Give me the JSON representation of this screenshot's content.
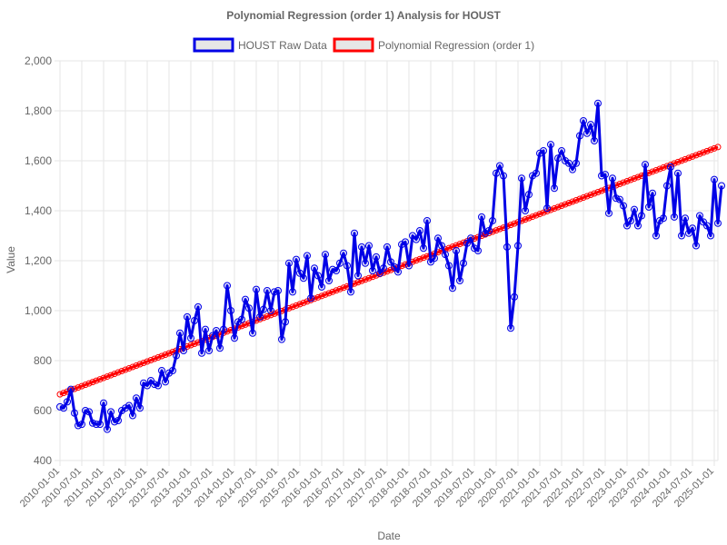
{
  "chart_data": {
    "type": "line",
    "title": "Polynomial Regression (order 1) Analysis for HOUST",
    "xlabel": "Date",
    "ylabel": "Value",
    "x_range": [
      "2010-01-01",
      "2025-02-01"
    ],
    "ylim": [
      400,
      2000
    ],
    "y_ticks": [
      400,
      600,
      800,
      1000,
      1200,
      1400,
      1600,
      1800,
      2000
    ],
    "y_tick_labels": [
      "400",
      "600",
      "800",
      "1,000",
      "1,200",
      "1,400",
      "1,600",
      "1,800",
      "2,000"
    ],
    "x_tick_labels": [
      "2010-01-01",
      "2010-07-01",
      "2011-01-01",
      "2011-07-01",
      "2012-01-01",
      "2012-07-01",
      "2013-01-01",
      "2013-07-01",
      "2014-01-01",
      "2014-07-01",
      "2015-01-01",
      "2015-07-01",
      "2016-01-01",
      "2016-07-01",
      "2017-01-01",
      "2017-07-01",
      "2018-01-01",
      "2018-07-01",
      "2019-01-01",
      "2019-07-01",
      "2020-01-01",
      "2020-07-01",
      "2021-01-01",
      "2021-07-01",
      "2022-01-01",
      "2022-07-01",
      "2023-01-01",
      "2023-07-01",
      "2024-01-01",
      "2024-07-01",
      "2025-01-01"
    ],
    "grid": true,
    "legend_position": "top",
    "series": [
      {
        "name": "HOUST Raw Data",
        "color": "#0000e6",
        "x_start": "2010-01-01",
        "frequency": "monthly",
        "values": [
          615,
          610,
          635,
          685,
          590,
          540,
          545,
          600,
          595,
          550,
          545,
          545,
          630,
          525,
          595,
          555,
          560,
          600,
          610,
          620,
          580,
          650,
          610,
          710,
          700,
          720,
          705,
          700,
          760,
          715,
          750,
          760,
          820,
          910,
          840,
          975,
          890,
          960,
          1015,
          830,
          925,
          840,
          900,
          920,
          850,
          925,
          1100,
          1000,
          890,
          955,
          965,
          1045,
          1010,
          910,
          1085,
          975,
          1005,
          1080,
          1000,
          1075,
          1080,
          885,
          955,
          1190,
          1075,
          1205,
          1150,
          1130,
          1220,
          1050,
          1170,
          1140,
          1095,
          1225,
          1120,
          1165,
          1160,
          1190,
          1230,
          1180,
          1075,
          1310,
          1140,
          1255,
          1190,
          1260,
          1160,
          1215,
          1150,
          1170,
          1255,
          1195,
          1175,
          1155,
          1265,
          1275,
          1180,
          1300,
          1285,
          1320,
          1250,
          1360,
          1195,
          1210,
          1290,
          1260,
          1225,
          1180,
          1090,
          1240,
          1120,
          1190,
          1270,
          1290,
          1250,
          1240,
          1375,
          1310,
          1320,
          1360,
          1550,
          1580,
          1540,
          1255,
          930,
          1055,
          1260,
          1530,
          1400,
          1465,
          1540,
          1550,
          1630,
          1640,
          1410,
          1665,
          1490,
          1610,
          1640,
          1600,
          1590,
          1565,
          1590,
          1700,
          1760,
          1710,
          1745,
          1680,
          1830,
          1540,
          1545,
          1390,
          1530,
          1450,
          1445,
          1420,
          1340,
          1360,
          1405,
          1340,
          1380,
          1585,
          1415,
          1470,
          1300,
          1360,
          1370,
          1500,
          1575,
          1375,
          1550,
          1300,
          1370,
          1310,
          1330,
          1260,
          1380,
          1355,
          1340,
          1300,
          1525,
          1350,
          1500
        ]
      },
      {
        "name": "Polynomial Regression (order 1)",
        "color": "#ff0000",
        "x_start": "2010-01-01",
        "frequency": "monthly",
        "values_from": 665,
        "values_to": 1655,
        "points": 182
      }
    ]
  }
}
